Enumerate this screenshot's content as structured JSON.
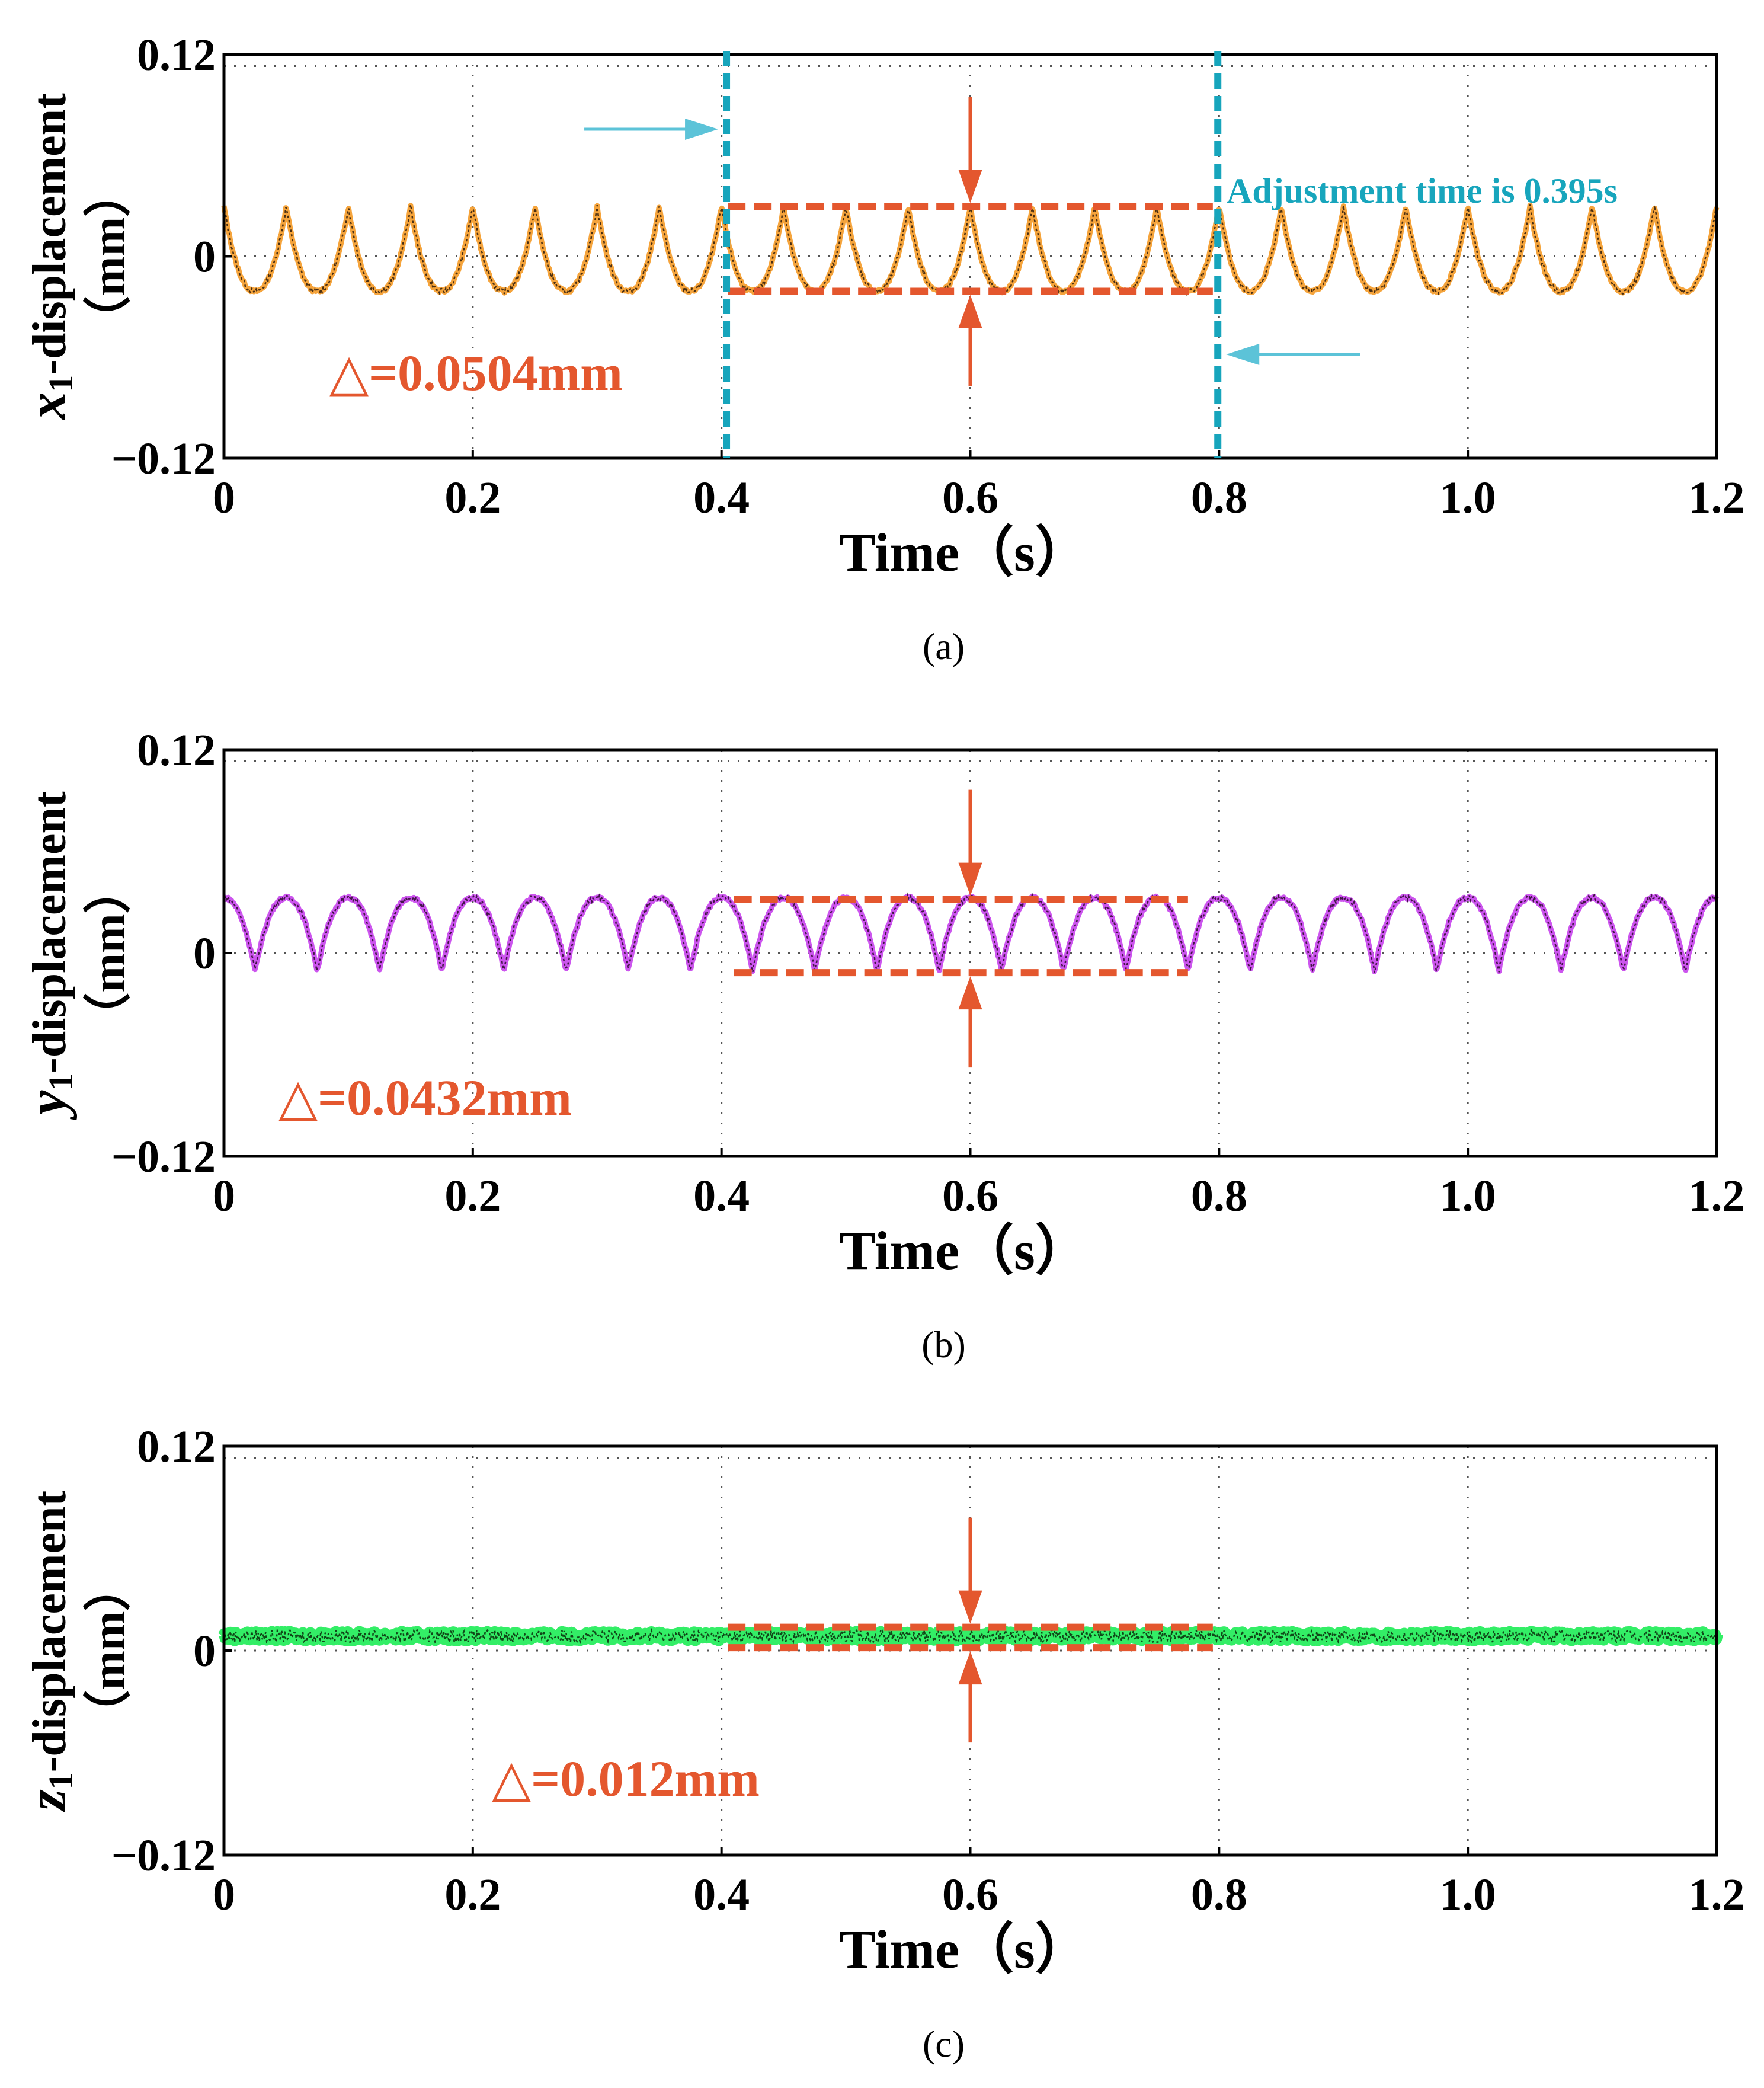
{
  "figure": {
    "captions": [
      "(a)",
      "(b)",
      "(c)"
    ]
  },
  "chart_data": [
    {
      "type": "line",
      "panel": "a",
      "caption": "(a)",
      "title": "",
      "xlabel": "Time（s）",
      "ylabel": {
        "var": "x",
        "sub": "1",
        "rest": "-displacement",
        "unit": "（mm）"
      },
      "xlim": [
        0,
        1.2
      ],
      "ylim": [
        -0.12,
        0.12
      ],
      "xticks": [
        0,
        0.2,
        0.4,
        0.6,
        0.8,
        1.0,
        1.2
      ],
      "xtick_labels": [
        "0",
        "0.2",
        "0.4",
        "0.6",
        "0.8",
        "1.0",
        "1.2"
      ],
      "yticks": [
        -0.12,
        0,
        0.12
      ],
      "ytick_labels": [
        "−0.12",
        "0",
        "0.12"
      ],
      "grid": true,
      "series": [
        {
          "name": "x1 displacement",
          "color": "#f5a43c",
          "overlay_color": "#2a1a0a",
          "waveform": {
            "periods": 24,
            "mean": 0.0044,
            "amplitude": 0.0252,
            "shape": "cusp-up",
            "phase": 0.5
          }
        }
      ],
      "band": {
        "x": [
          0.405,
          0.795
        ],
        "y": [
          -0.0208,
          0.0296
        ]
      },
      "delta_label": "△=0.0504mm",
      "delta_mm": 0.0504,
      "arrows_x": 0.6,
      "adjustment": {
        "label": "Adjustment time is 0.395s",
        "seconds": 0.395,
        "start": 0.404,
        "end": 0.799
      },
      "colors": {
        "annotation": "#e4572e",
        "adjustment": "#17a5bc",
        "arrow_light": "#5cc3d8"
      }
    },
    {
      "type": "line",
      "panel": "b",
      "caption": "(b)",
      "title": "",
      "xlabel": "Time（s）",
      "ylabel": {
        "var": "y",
        "sub": "1",
        "rest": "-displacement",
        "unit": "（mm）"
      },
      "xlim": [
        0,
        1.2
      ],
      "ylim": [
        -0.12,
        0.12
      ],
      "xticks": [
        0,
        0.2,
        0.4,
        0.6,
        0.8,
        1.0,
        1.2
      ],
      "xtick_labels": [
        "0",
        "0.2",
        "0.4",
        "0.6",
        "0.8",
        "1.0",
        "1.2"
      ],
      "yticks": [
        -0.12,
        0,
        0.12
      ],
      "ytick_labels": [
        "−0.12",
        "0",
        "0.12"
      ],
      "grid": true,
      "series": [
        {
          "name": "y1 displacement",
          "color": "#cc55ee",
          "overlay_color": "#2a0a2a",
          "waveform": {
            "periods": 24,
            "mean": 0.011,
            "amplitude": 0.0216,
            "shape": "cusp-down",
            "phase": 0.0
          }
        }
      ],
      "band": {
        "x": [
          0.41,
          0.775
        ],
        "y": [
          -0.0116,
          0.0316
        ]
      },
      "delta_label": "△=0.0432mm",
      "delta_mm": 0.0432,
      "arrows_x": 0.6,
      "colors": {
        "annotation": "#e4572e"
      }
    },
    {
      "type": "line",
      "panel": "c",
      "caption": "(c)",
      "title": "",
      "xlabel": "Time（s）",
      "ylabel": {
        "var": "z",
        "sub": "1",
        "rest": "-displacement",
        "unit": "（mm）"
      },
      "xlim": [
        0,
        1.2
      ],
      "ylim": [
        -0.12,
        0.12
      ],
      "xticks": [
        0,
        0.2,
        0.4,
        0.6,
        0.8,
        1.0,
        1.2
      ],
      "xtick_labels": [
        "0",
        "0.2",
        "0.4",
        "0.6",
        "0.8",
        "1.0",
        "1.2"
      ],
      "yticks": [
        -0.12,
        0,
        0.12
      ],
      "ytick_labels": [
        "−0.12",
        "0",
        "0.12"
      ],
      "grid": true,
      "series": [
        {
          "name": "z1 displacement",
          "color": "#33ee66",
          "overlay_color": "#0a2a0a",
          "waveform": {
            "periods": 0,
            "mean": 0.0085,
            "amplitude": 0.0,
            "shape": "flat",
            "noise": 0.0035
          }
        }
      ],
      "band": {
        "x": [
          0.405,
          0.795
        ],
        "y": [
          0.0017,
          0.0137
        ]
      },
      "delta_label": "△=0.012mm",
      "delta_mm": 0.012,
      "arrows_x": 0.6,
      "colors": {
        "annotation": "#e4572e"
      }
    }
  ]
}
